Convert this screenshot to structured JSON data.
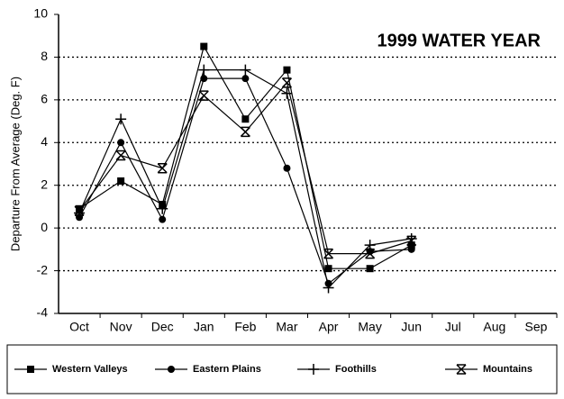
{
  "chart_data": {
    "type": "line",
    "title": "1999 WATER YEAR",
    "y_label": "Departure From Average (Deg. F)",
    "categories": [
      "Oct",
      "Nov",
      "Dec",
      "Jan",
      "Feb",
      "Mar",
      "Apr",
      "May",
      "Jun",
      "Jul",
      "Aug",
      "Sep"
    ],
    "series": [
      {
        "name": "Western Valleys",
        "color": "#000000",
        "marker": "square",
        "values": [
          0.9,
          2.2,
          1.1,
          8.5,
          5.1,
          7.4,
          -1.9,
          -1.9,
          -0.8,
          null,
          null,
          null
        ]
      },
      {
        "name": "Eastern Plains",
        "color": "#000000",
        "marker": "circle",
        "values": [
          0.5,
          4.0,
          0.4,
          7.0,
          7.0,
          2.8,
          -2.6,
          -1.1,
          -1.0,
          null,
          null,
          null
        ]
      },
      {
        "name": "Foothills",
        "color": "#000000",
        "marker": "plus",
        "values": [
          0.7,
          5.1,
          0.9,
          7.4,
          7.4,
          6.3,
          -2.8,
          -0.8,
          -0.5,
          null,
          null,
          null
        ]
      },
      {
        "name": "Mountains",
        "color": "#000000",
        "marker": "xbar",
        "values": [
          0.8,
          3.4,
          2.8,
          6.2,
          4.5,
          6.8,
          -1.2,
          -1.2,
          -0.6,
          null,
          null,
          null
        ]
      }
    ],
    "ylim": [
      -4,
      10
    ],
    "yticks": [
      -4,
      -2,
      0,
      2,
      4,
      6,
      8,
      10
    ],
    "grid": true,
    "legend": "bottom"
  }
}
